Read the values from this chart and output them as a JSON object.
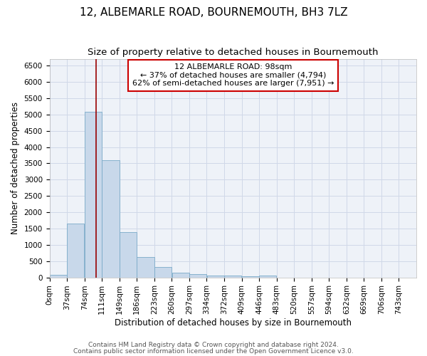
{
  "title": "12, ALBEMARLE ROAD, BOURNEMOUTH, BH3 7LZ",
  "subtitle": "Size of property relative to detached houses in Bournemouth",
  "xlabel": "Distribution of detached houses by size in Bournemouth",
  "ylabel": "Number of detached properties",
  "bin_edges": [
    0,
    37,
    74,
    111,
    148,
    185,
    222,
    259,
    296,
    333,
    370,
    407,
    444,
    481,
    518,
    555,
    592,
    629,
    666,
    703,
    740
  ],
  "bar_heights": [
    75,
    1650,
    5075,
    3600,
    1400,
    625,
    310,
    150,
    90,
    55,
    60,
    35,
    60,
    0,
    0,
    0,
    0,
    0,
    0,
    0
  ],
  "bar_color": "#c8d8ea",
  "bar_edge_color": "#7aaac8",
  "bar_edge_width": 0.6,
  "property_line_x": 98,
  "property_line_color": "#990000",
  "ylim": [
    0,
    6700
  ],
  "yticks": [
    0,
    500,
    1000,
    1500,
    2000,
    2500,
    3000,
    3500,
    4000,
    4500,
    5000,
    5500,
    6000,
    6500
  ],
  "xtick_labels": [
    "0sqm",
    "37sqm",
    "74sqm",
    "111sqm",
    "149sqm",
    "186sqm",
    "223sqm",
    "260sqm",
    "297sqm",
    "334sqm",
    "372sqm",
    "409sqm",
    "446sqm",
    "483sqm",
    "520sqm",
    "557sqm",
    "594sqm",
    "632sqm",
    "669sqm",
    "706sqm",
    "743sqm"
  ],
  "annotation_text": "12 ALBEMARLE ROAD: 98sqm\n← 37% of detached houses are smaller (4,794)\n62% of semi-detached houses are larger (7,951) →",
  "annotation_box_color": "#ffffff",
  "annotation_box_edge_color": "#cc0000",
  "grid_color": "#d0d8e8",
  "background_color": "#eef2f8",
  "title_fontsize": 11,
  "subtitle_fontsize": 9.5,
  "axis_label_fontsize": 8.5,
  "tick_fontsize": 7.5,
  "annotation_fontsize": 8,
  "footer_line1": "Contains HM Land Registry data © Crown copyright and database right 2024.",
  "footer_line2": "Contains public sector information licensed under the Open Government Licence v3.0.",
  "footer_fontsize": 6.5
}
